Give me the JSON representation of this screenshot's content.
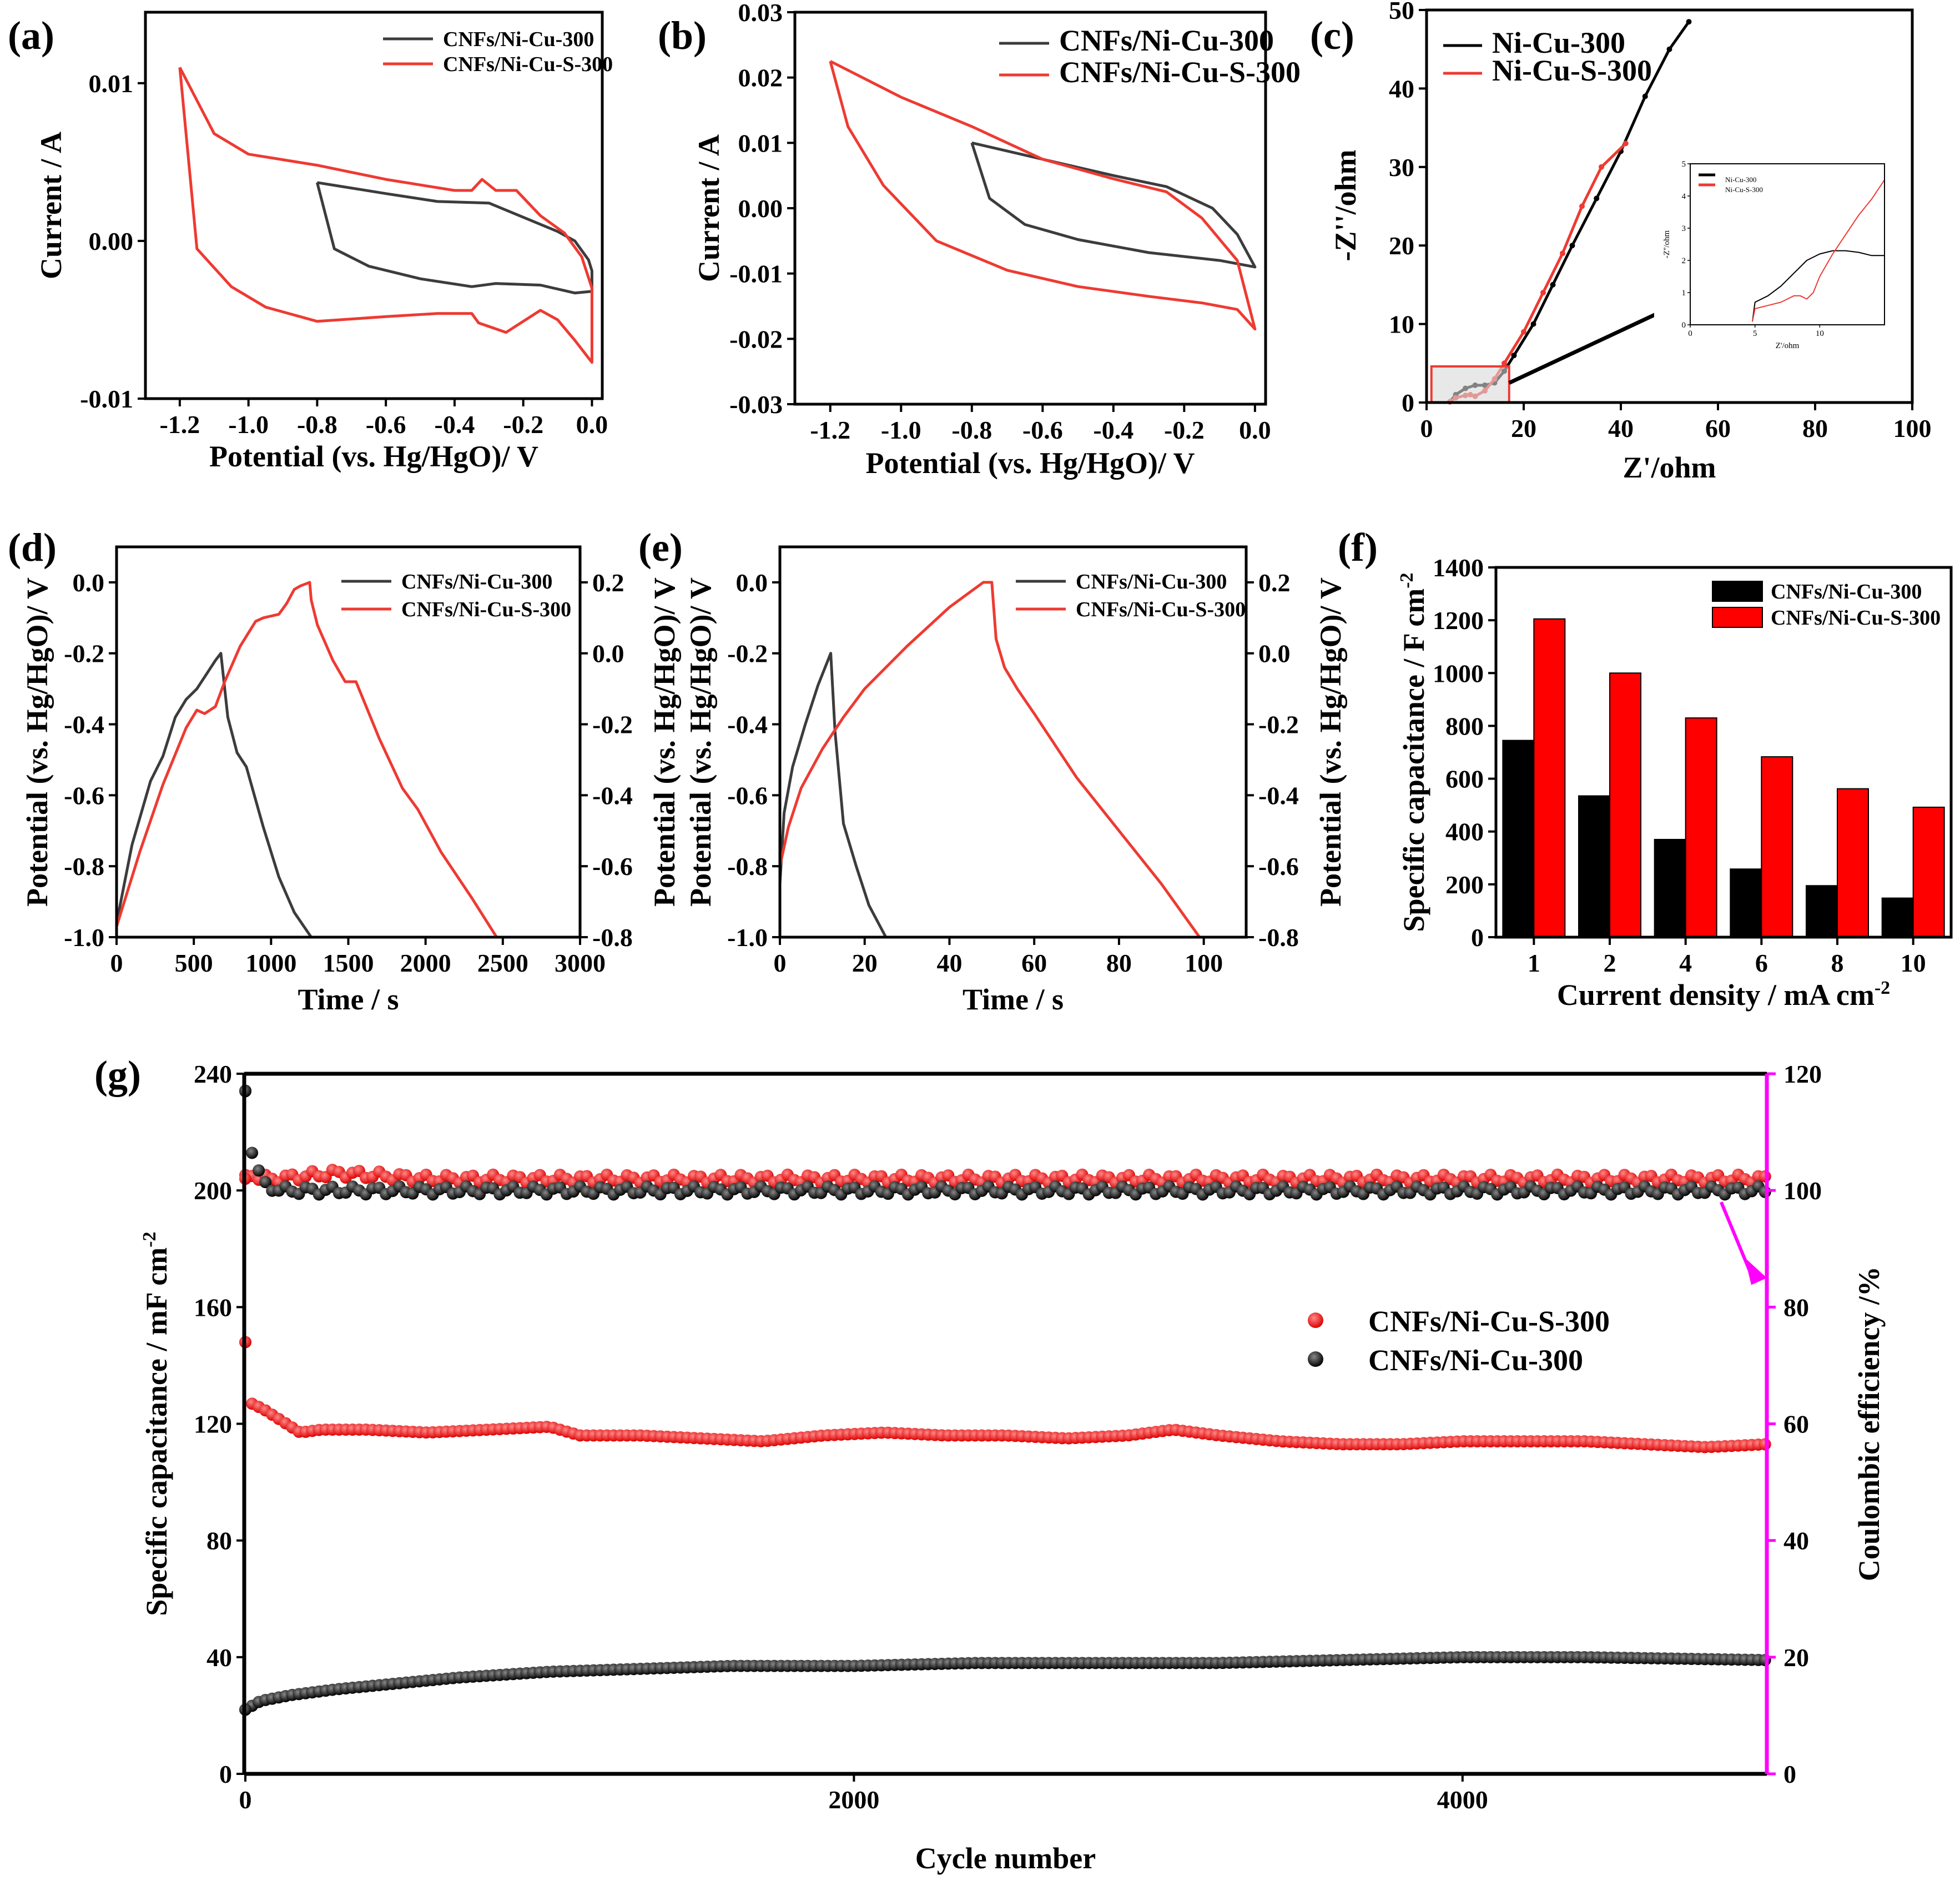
{
  "figure": {
    "panels": [
      {
        "id": "a",
        "label": "(a)",
        "xlabel": "Potential (vs. Hg/HgO)/ V",
        "ylabel": "Current / A",
        "xticks": [
          "-1.2",
          "-1.0",
          "-0.8",
          "-0.6",
          "-0.4",
          "-0.2",
          "0.0"
        ],
        "yticks": [
          "0.01",
          "0.00",
          "-0.01"
        ],
        "legend": [
          "CNFs/Ni-Cu-300",
          "CNFs/Ni-Cu-S-300"
        ]
      },
      {
        "id": "b",
        "label": "(b)",
        "xlabel": "Potential (vs. Hg/HgO)/ V",
        "ylabel": "Current / A",
        "xticks": [
          "-1.2",
          "-1.0",
          "-0.8",
          "-0.6",
          "-0.4",
          "-0.2",
          "0.0"
        ],
        "yticks": [
          "0.03",
          "0.02",
          "0.01",
          "0.00",
          "-0.01",
          "-0.02",
          "-0.03"
        ],
        "legend": [
          "CNFs/Ni-Cu-300",
          "CNFs/Ni-Cu-S-300"
        ]
      },
      {
        "id": "c",
        "label": "(c)",
        "xlabel": "Z'/ohm",
        "ylabel": "-Z''/ohm",
        "xticks": [
          "0",
          "20",
          "40",
          "60",
          "80",
          "100"
        ],
        "yticks": [
          "0",
          "10",
          "20",
          "30",
          "40",
          "50"
        ],
        "legend": [
          "Ni-Cu-300",
          "Ni-Cu-S-300"
        ],
        "inset": {
          "xlabel": "Z'/ohm",
          "ylabel": "-Z''/ohm",
          "xticks": [
            "0",
            "5",
            "10"
          ],
          "yticks": [
            "0",
            "1",
            "2",
            "3",
            "4",
            "5"
          ],
          "legend": [
            "Ni-Cu-300",
            "Ni-Cu-S-300"
          ]
        }
      },
      {
        "id": "d",
        "label": "(d)",
        "xlabel": "Time / s",
        "ylabel": "Potential (vs. Hg/HgO)/ V",
        "ylabel_right": "Potential (vs. Hg/HgO)/ V",
        "xticks": [
          "0",
          "500",
          "1000",
          "1500",
          "2000",
          "2500",
          "3000"
        ],
        "yticks": [
          "0.0",
          "-0.2",
          "-0.4",
          "-0.6",
          "-0.8",
          "-1.0"
        ],
        "yticks_right": [
          "0.2",
          "0.0",
          "-0.2",
          "-0.4",
          "-0.6",
          "-0.8"
        ],
        "legend": [
          "CNFs/Ni-Cu-300",
          "CNFs/Ni-Cu-S-300"
        ]
      },
      {
        "id": "e",
        "label": "(e)",
        "xlabel": "Time / s",
        "ylabel": "Potential (vs. Hg/HgO)/ V",
        "ylabel_right": "Potential (vs. Hg/HgO)/ V",
        "xticks": [
          "0",
          "20",
          "40",
          "60",
          "80",
          "100"
        ],
        "yticks": [
          "0.0",
          "-0.2",
          "-0.4",
          "-0.6",
          "-0.8",
          "-1.0"
        ],
        "yticks_right": [
          "0.2",
          "0.0",
          "-0.2",
          "-0.4",
          "-0.6",
          "-0.8"
        ],
        "legend": [
          "CNFs/Ni-Cu-300",
          "CNFs/Ni-Cu-S-300"
        ]
      },
      {
        "id": "f",
        "label": "(f)",
        "xlabel": "Current density / mA cm",
        "xlabel_sup": "-2",
        "ylabel": "Specific capacitance / F cm",
        "ylabel_sup": "-2",
        "yticks": [
          "0",
          "200",
          "400",
          "600",
          "800",
          "1000",
          "1200",
          "1400"
        ],
        "legend": [
          "CNFs/Ni-Cu-300",
          "CNFs/Ni-Cu-S-300"
        ]
      },
      {
        "id": "g",
        "label": "(g)",
        "xlabel": "Cycle number",
        "ylabel": "Specific capacitance / mF cm",
        "ylabel_sup": "-2",
        "ylabel_right": "Coulombic efficiency /%",
        "xticks": [
          "0",
          "2000",
          "4000"
        ],
        "yticks": [
          "0",
          "40",
          "80",
          "120",
          "160",
          "200",
          "240"
        ],
        "yticks_right": [
          "0",
          "20",
          "40",
          "60",
          "80",
          "100",
          "120"
        ],
        "legend": [
          "CNFs/Ni-Cu-S-300",
          "CNFs/Ni-Cu-300"
        ]
      }
    ]
  },
  "chart_data": [
    {
      "type": "line",
      "panel": "a",
      "title": "",
      "xlabel": "Potential (vs. Hg/HgO)/ V",
      "ylabel": "Current / A",
      "xlim": [
        -1.3,
        0.03
      ],
      "ylim": [
        -0.01,
        0.0145
      ],
      "series": [
        {
          "name": "CNFs/Ni-Cu-300",
          "color": "#3c3c3c",
          "x": [
            -0.8,
            -0.6,
            -0.45,
            -0.3,
            -0.2,
            -0.1,
            -0.05,
            -0.01,
            0.0,
            0.0,
            -0.05,
            -0.15,
            -0.28,
            -0.35,
            -0.5,
            -0.65,
            -0.75,
            -0.8
          ],
          "y": [
            0.0037,
            0.003,
            0.0025,
            0.0024,
            0.0015,
            0.0006,
            0.0,
            -0.0012,
            -0.0019,
            -0.0032,
            -0.0033,
            -0.0028,
            -0.0027,
            -0.0029,
            -0.0024,
            -0.0016,
            -0.0005,
            0.0037
          ]
        },
        {
          "name": "CNFs/Ni-Cu-S-300",
          "color": "#ee3a32",
          "x": [
            -1.2,
            -1.1,
            -1.0,
            -0.8,
            -0.6,
            -0.4,
            -0.35,
            -0.32,
            -0.28,
            -0.22,
            -0.15,
            -0.08,
            -0.03,
            0.0,
            0.0,
            -0.05,
            -0.1,
            -0.15,
            -0.25,
            -0.33,
            -0.35,
            -0.45,
            -0.6,
            -0.8,
            -0.95,
            -1.05,
            -1.15,
            -1.2
          ],
          "y": [
            0.011,
            0.0068,
            0.0055,
            0.0048,
            0.0039,
            0.0032,
            0.0032,
            0.0039,
            0.0032,
            0.0032,
            0.0016,
            0.0005,
            -0.001,
            -0.003,
            -0.0077,
            -0.0063,
            -0.005,
            -0.0044,
            -0.0058,
            -0.0052,
            -0.0046,
            -0.0046,
            -0.0048,
            -0.0051,
            -0.0042,
            -0.0029,
            -0.0005,
            0.011
          ]
        }
      ]
    },
    {
      "type": "line",
      "panel": "b",
      "title": "",
      "xlabel": "Potential (vs. Hg/HgO)/ V",
      "ylabel": "Current / A",
      "xlim": [
        -1.3,
        0.03
      ],
      "ylim": [
        -0.03,
        0.03
      ],
      "series": [
        {
          "name": "CNFs/Ni-Cu-300",
          "color": "#3c3c3c",
          "x": [
            -0.8,
            -0.6,
            -0.4,
            -0.25,
            -0.12,
            -0.05,
            0.0,
            -0.1,
            -0.3,
            -0.5,
            -0.65,
            -0.75,
            -0.8
          ],
          "y": [
            0.01,
            0.0075,
            0.005,
            0.0033,
            0.0,
            -0.004,
            -0.009,
            -0.008,
            -0.0068,
            -0.0048,
            -0.0025,
            0.0015,
            0.01
          ]
        },
        {
          "name": "CNFs/Ni-Cu-S-300",
          "color": "#ee3a32",
          "x": [
            -1.2,
            -1.0,
            -0.8,
            -0.6,
            -0.4,
            -0.25,
            -0.15,
            -0.05,
            0.0,
            -0.05,
            -0.15,
            -0.3,
            -0.5,
            -0.7,
            -0.9,
            -1.05,
            -1.15,
            -1.2
          ],
          "y": [
            0.0225,
            0.017,
            0.0125,
            0.0075,
            0.0045,
            0.0025,
            -0.0015,
            -0.008,
            -0.0185,
            -0.0155,
            -0.0145,
            -0.0135,
            -0.012,
            -0.0095,
            -0.005,
            0.0035,
            0.0125,
            0.0225
          ]
        }
      ]
    },
    {
      "type": "scatter",
      "panel": "c",
      "title": "",
      "xlabel": "Z'/ohm",
      "ylabel": "-Z''/ohm",
      "xlim": [
        0,
        100
      ],
      "ylim": [
        0,
        50
      ],
      "series": [
        {
          "name": "Ni-Cu-300",
          "color": "#000000",
          "x": [
            4.8,
            6,
            8,
            10,
            12,
            14,
            16,
            18,
            22,
            26,
            30,
            35,
            40,
            45,
            50,
            54
          ],
          "y": [
            0.1,
            1.0,
            1.8,
            2.2,
            2.2,
            2.5,
            4,
            6,
            10,
            15,
            20,
            26,
            32,
            39,
            45,
            48.5
          ]
        },
        {
          "name": "Ni-Cu-S-300",
          "color": "#ee3a32",
          "x": [
            4.8,
            6,
            8,
            9,
            10,
            12,
            14,
            16,
            20,
            24,
            28,
            32,
            36,
            41
          ],
          "y": [
            0.1,
            0.6,
            0.9,
            1.0,
            0.8,
            1.5,
            3,
            5,
            9,
            14,
            19,
            25,
            30,
            33
          ]
        }
      ]
    },
    {
      "type": "line",
      "panel": "d",
      "title": "",
      "xlabel": "Time / s",
      "ylabel": "Potential (vs. Hg/HgO)/ V",
      "xlim": [
        0,
        3000
      ],
      "ylim": [
        -1.0,
        0.1
      ],
      "series": [
        {
          "name": "CNFs/Ni-Cu-300",
          "color": "#3c3c3c",
          "x": [
            0,
            100,
            220,
            300,
            380,
            450,
            520,
            580,
            640,
            675,
            720,
            780,
            840,
            950,
            1050,
            1150,
            1260
          ],
          "y": [
            -0.96,
            -0.74,
            -0.56,
            -0.49,
            -0.38,
            -0.33,
            -0.3,
            -0.26,
            -0.22,
            -0.2,
            -0.38,
            -0.48,
            -0.52,
            -0.69,
            -0.83,
            -0.93,
            -1.0
          ]
        },
        {
          "name": "CNFs/Ni-Cu-S-300",
          "color": "#ee3a32",
          "x": [
            0,
            150,
            300,
            450,
            520,
            570,
            640,
            700,
            800,
            900,
            950,
            1050,
            1100,
            1150,
            1190,
            1250,
            1260,
            1300,
            1400,
            1480,
            1550,
            1700,
            1850,
            1950,
            2100,
            2300,
            2460
          ],
          "y": [
            -0.97,
            -0.76,
            -0.57,
            -0.41,
            -0.36,
            -0.37,
            -0.35,
            -0.28,
            -0.18,
            -0.11,
            -0.1,
            -0.09,
            -0.06,
            -0.02,
            -0.01,
            0.0,
            -0.05,
            -0.12,
            -0.22,
            -0.28,
            -0.28,
            -0.44,
            -0.58,
            -0.64,
            -0.76,
            -0.89,
            -1.0
          ]
        }
      ]
    },
    {
      "type": "line",
      "panel": "e",
      "title": "",
      "xlabel": "Time / s",
      "ylabel": "Potential (vs. Hg/HgO)/ V",
      "xlim": [
        0,
        110
      ],
      "ylim": [
        -1.0,
        0.1
      ],
      "series": [
        {
          "name": "CNFs/Ni-Cu-300",
          "color": "#3c3c3c",
          "x": [
            0,
            1,
            3,
            6,
            9,
            12,
            13,
            15,
            18,
            21,
            25
          ],
          "y": [
            -0.85,
            -0.65,
            -0.52,
            -0.4,
            -0.29,
            -0.2,
            -0.42,
            -0.68,
            -0.8,
            -0.91,
            -1.0
          ]
        },
        {
          "name": "CNFs/Ni-Cu-S-300",
          "color": "#ee3a32",
          "x": [
            0,
            2,
            5,
            10,
            15,
            20,
            30,
            40,
            48,
            50,
            51,
            53,
            56,
            60,
            70,
            80,
            90,
            99
          ],
          "y": [
            -0.8,
            -0.69,
            -0.58,
            -0.47,
            -0.38,
            -0.3,
            -0.18,
            -0.07,
            0.0,
            0.0,
            -0.16,
            -0.24,
            -0.3,
            -0.37,
            -0.55,
            -0.7,
            -0.85,
            -1.0
          ]
        }
      ]
    },
    {
      "type": "bar",
      "panel": "f",
      "title": "",
      "xlabel": "Current density / mA cm-2",
      "ylabel": "Specific capacitance / F cm-2",
      "categories": [
        "1",
        "2",
        "4",
        "6",
        "8",
        "10"
      ],
      "ylim": [
        0,
        1400
      ],
      "series": [
        {
          "name": "CNFs/Ni-Cu-300",
          "color": "#000000",
          "values": [
            745,
            535,
            370,
            258,
            195,
            148
          ]
        },
        {
          "name": "CNFs/Ni-Cu-S-300",
          "color": "#ff0000",
          "values": [
            1205,
            1000,
            830,
            683,
            562,
            492
          ]
        }
      ]
    },
    {
      "type": "scatter",
      "panel": "g",
      "title": "",
      "xlabel": "Cycle number",
      "ylabel": "Specific capacitance / mF cm-2",
      "ylabel_right": "Coulombic efficiency /%",
      "xlim": [
        0,
        5000
      ],
      "ylim": [
        0,
        240
      ],
      "ylim_right": [
        0,
        120
      ],
      "series": [
        {
          "name": "CNFs/Ni-Cu-S-300 capacitance",
          "color": "#ee2222",
          "axis": "left",
          "x": [
            0,
            20,
            60,
            120,
            180,
            250,
            400,
            600,
            800,
            1000,
            1100,
            1300,
            1500,
            1700,
            1900,
            2100,
            2300,
            2500,
            2700,
            2900,
            3050,
            3200,
            3400,
            3600,
            3800,
            4000,
            4200,
            4400,
            4600,
            4800,
            5000
          ],
          "y": [
            148,
            127,
            125,
            121,
            117,
            118,
            118,
            117,
            118,
            119,
            116,
            116,
            115,
            114,
            116,
            117,
            116,
            116,
            115,
            116,
            118,
            116,
            114,
            113,
            113,
            114,
            114,
            114,
            113,
            112,
            113
          ]
        },
        {
          "name": "CNFs/Ni-Cu-300 capacitance",
          "color": "#111111",
          "axis": "left",
          "x": [
            0,
            50,
            150,
            300,
            500,
            700,
            1000,
            1300,
            1600,
            2000,
            2400,
            2800,
            3200,
            3600,
            4000,
            4400,
            5000
          ],
          "y": [
            22,
            25,
            27,
            29,
            31,
            33,
            35,
            36,
            37,
            37,
            38,
            38,
            38,
            39,
            40,
            40,
            39
          ]
        },
        {
          "name": "CNFs/Ni-Cu-S-300 efficiency",
          "color": "#ee2222",
          "axis": "right",
          "x": [
            0,
            20,
            50,
            100,
            300,
            600,
            1000,
            1500,
            2000,
            2500,
            3000,
            3500,
            4000,
            4500,
            5000
          ],
          "y": [
            102,
            103,
            102,
            102,
            103,
            102,
            102,
            102,
            102,
            102,
            102,
            102,
            102,
            102,
            102
          ]
        },
        {
          "name": "CNFs/Ni-Cu-300 efficiency",
          "color": "#111111",
          "axis": "right",
          "x": [
            0,
            5,
            15,
            30,
            60,
            120,
            300,
            600,
            1000,
            2000,
            3000,
            4000,
            5000
          ],
          "y": [
            117,
            113,
            109,
            105,
            101,
            100,
            100,
            100,
            100,
            100,
            100,
            100,
            100
          ]
        }
      ]
    }
  ]
}
